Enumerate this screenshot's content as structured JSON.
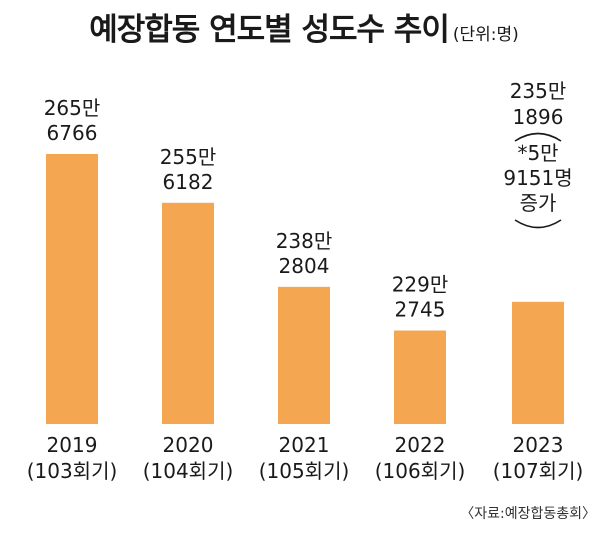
{
  "header": {
    "title": "예장합동 연도별 성도수 추이",
    "unit": "(단위:명)"
  },
  "source": "〈자료:예장합동총회〉",
  "colors": {
    "bar": "#F4A650",
    "text": "#1a1a1a"
  },
  "chart_data": {
    "type": "bar",
    "title": "예장합동 연도별 성도수 추이",
    "unit": "(단위:명)",
    "categories": [
      "2019",
      "2020",
      "2021",
      "2022",
      "2023"
    ],
    "category_sublabels": [
      "(103회기)",
      "(104회기)",
      "(105회기)",
      "(106회기)",
      "(107회기)"
    ],
    "values": [
      2656766,
      2556182,
      2382804,
      2292745,
      2351896
    ],
    "value_labels": [
      [
        "265만",
        "6766"
      ],
      [
        "255만",
        "6182"
      ],
      [
        "238만",
        "2804"
      ],
      [
        "229만",
        "2745"
      ],
      [
        "235만",
        "1896"
      ]
    ],
    "annotation": {
      "category": "2023",
      "lines": [
        "*5만",
        "9151명",
        "증가"
      ]
    },
    "ylim": [
      2100000,
      2700000
    ],
    "grid": false,
    "legend": "none"
  }
}
